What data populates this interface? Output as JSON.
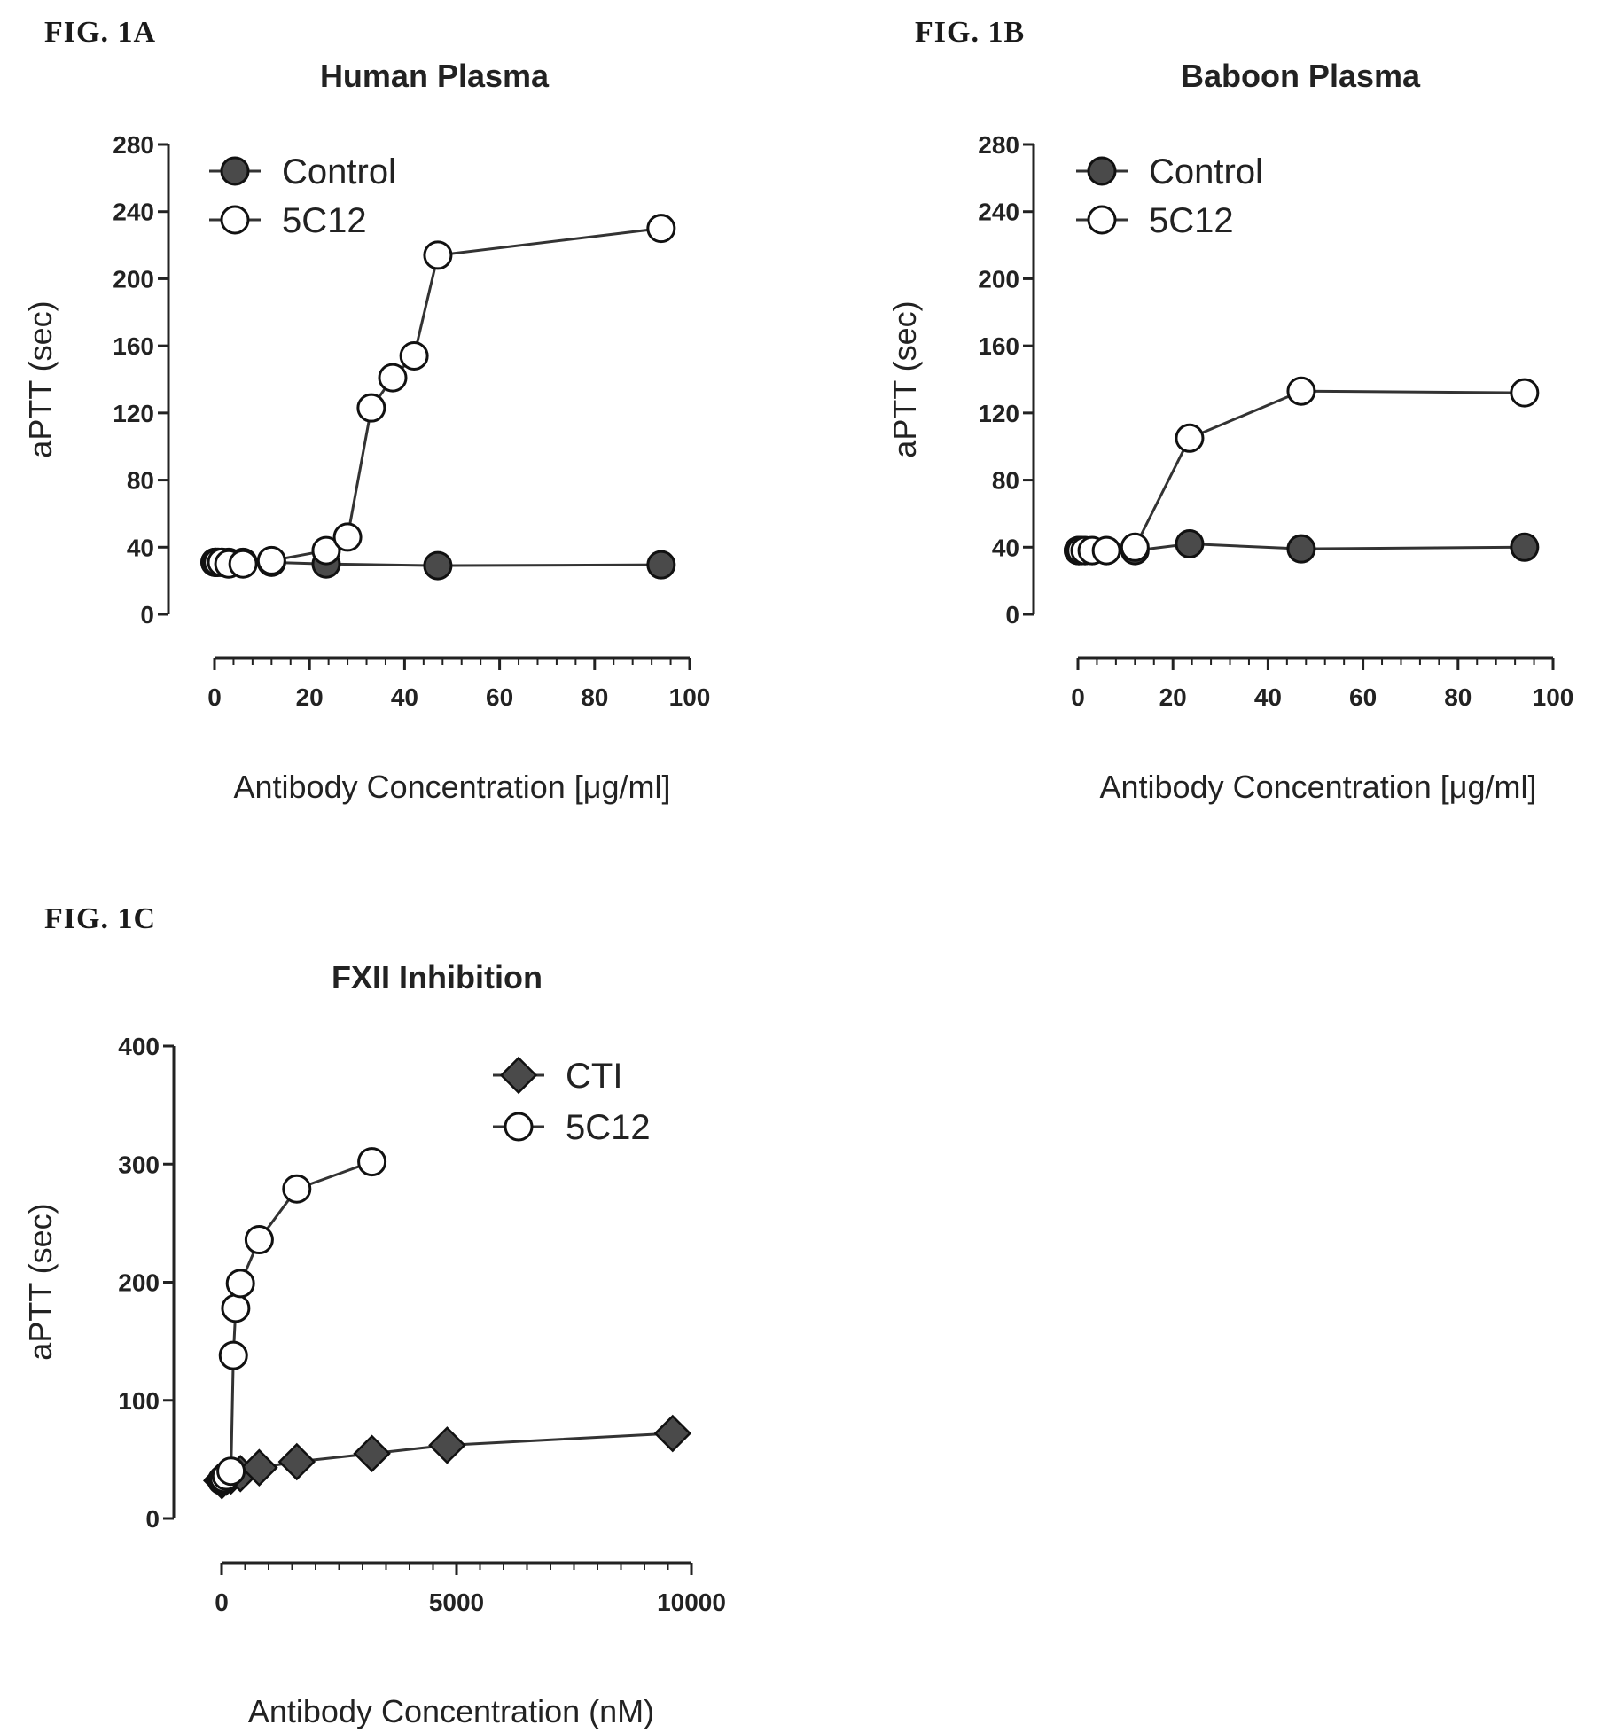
{
  "chart_data": [
    {
      "id": "A",
      "type": "line",
      "fig_label": "FIG. 1A",
      "title": "Human Plasma",
      "xlabel": "Antibody Concentration [μg/ml]",
      "ylabel": "aPTT (sec)",
      "xlim": [
        0,
        100
      ],
      "ylim": [
        0,
        280
      ],
      "xticks": [
        0,
        20,
        40,
        60,
        80,
        100
      ],
      "yticks": [
        0,
        40,
        80,
        120,
        160,
        200,
        240,
        280
      ],
      "legend_position": "top-left",
      "grid": false,
      "series": [
        {
          "name": "Control",
          "marker": "filled-circle",
          "x": [
            0.1,
            0.3,
            0.7,
            1.5,
            3,
            6,
            12,
            23.5,
            47,
            94
          ],
          "y": [
            31,
            31,
            31,
            31,
            31,
            31,
            31,
            30,
            29,
            29.5
          ]
        },
        {
          "name": "5C12",
          "marker": "open-circle",
          "x": [
            0.1,
            0.3,
            0.7,
            1.5,
            3,
            6,
            12,
            23.5,
            28,
            33,
            37.5,
            42,
            47,
            94
          ],
          "y": [
            31,
            31,
            31,
            31,
            30,
            30,
            32,
            38,
            46,
            123,
            141,
            154,
            214,
            230
          ]
        }
      ]
    },
    {
      "id": "B",
      "type": "line",
      "fig_label": "FIG. 1B",
      "title": "Baboon Plasma",
      "xlabel": "Antibody Concentration [μg/ml]",
      "ylabel": "aPTT (sec)",
      "xlim": [
        0,
        100
      ],
      "ylim": [
        0,
        280
      ],
      "xticks": [
        0,
        20,
        40,
        60,
        80,
        100
      ],
      "yticks": [
        0,
        40,
        80,
        120,
        160,
        200,
        240,
        280
      ],
      "legend_position": "top-left",
      "grid": false,
      "series": [
        {
          "name": "Control",
          "marker": "filled-circle",
          "x": [
            0.1,
            0.3,
            0.7,
            1.5,
            3,
            6,
            12,
            23.5,
            47,
            94
          ],
          "y": [
            38,
            38,
            38,
            38,
            38,
            38,
            38,
            42,
            39,
            40
          ]
        },
        {
          "name": "5C12",
          "marker": "open-circle",
          "x": [
            0.1,
            0.3,
            0.7,
            1.5,
            3,
            6,
            12,
            23.5,
            47,
            94
          ],
          "y": [
            38,
            38,
            38,
            38,
            38,
            38,
            40,
            105,
            133,
            132
          ]
        }
      ]
    },
    {
      "id": "C",
      "type": "line",
      "fig_label": "FIG. 1C",
      "title": "FXII Inhibition",
      "xlabel": "Antibody Concentration (nM)",
      "ylabel": "aPTT (sec)",
      "xlim": [
        0,
        10000
      ],
      "ylim": [
        0,
        400
      ],
      "xticks": [
        0,
        5000,
        10000
      ],
      "yticks": [
        0,
        100,
        200,
        300,
        400
      ],
      "legend_position": "top-right",
      "grid": false,
      "series": [
        {
          "name": "CTI",
          "marker": "filled-diamond",
          "x": [
            5,
            20,
            50,
            100,
            200,
            400,
            800,
            1600,
            3200,
            4800,
            9600
          ],
          "y": [
            32,
            33,
            34,
            35,
            36,
            38,
            43,
            48,
            55,
            62,
            72
          ]
        },
        {
          "name": "5C12",
          "marker": "open-circle",
          "x": [
            5,
            20,
            50,
            100,
            200,
            250,
            300,
            400,
            800,
            1600,
            3200
          ],
          "y": [
            32,
            33,
            34,
            36,
            40,
            138,
            178,
            199,
            236,
            279,
            302
          ]
        }
      ]
    }
  ]
}
